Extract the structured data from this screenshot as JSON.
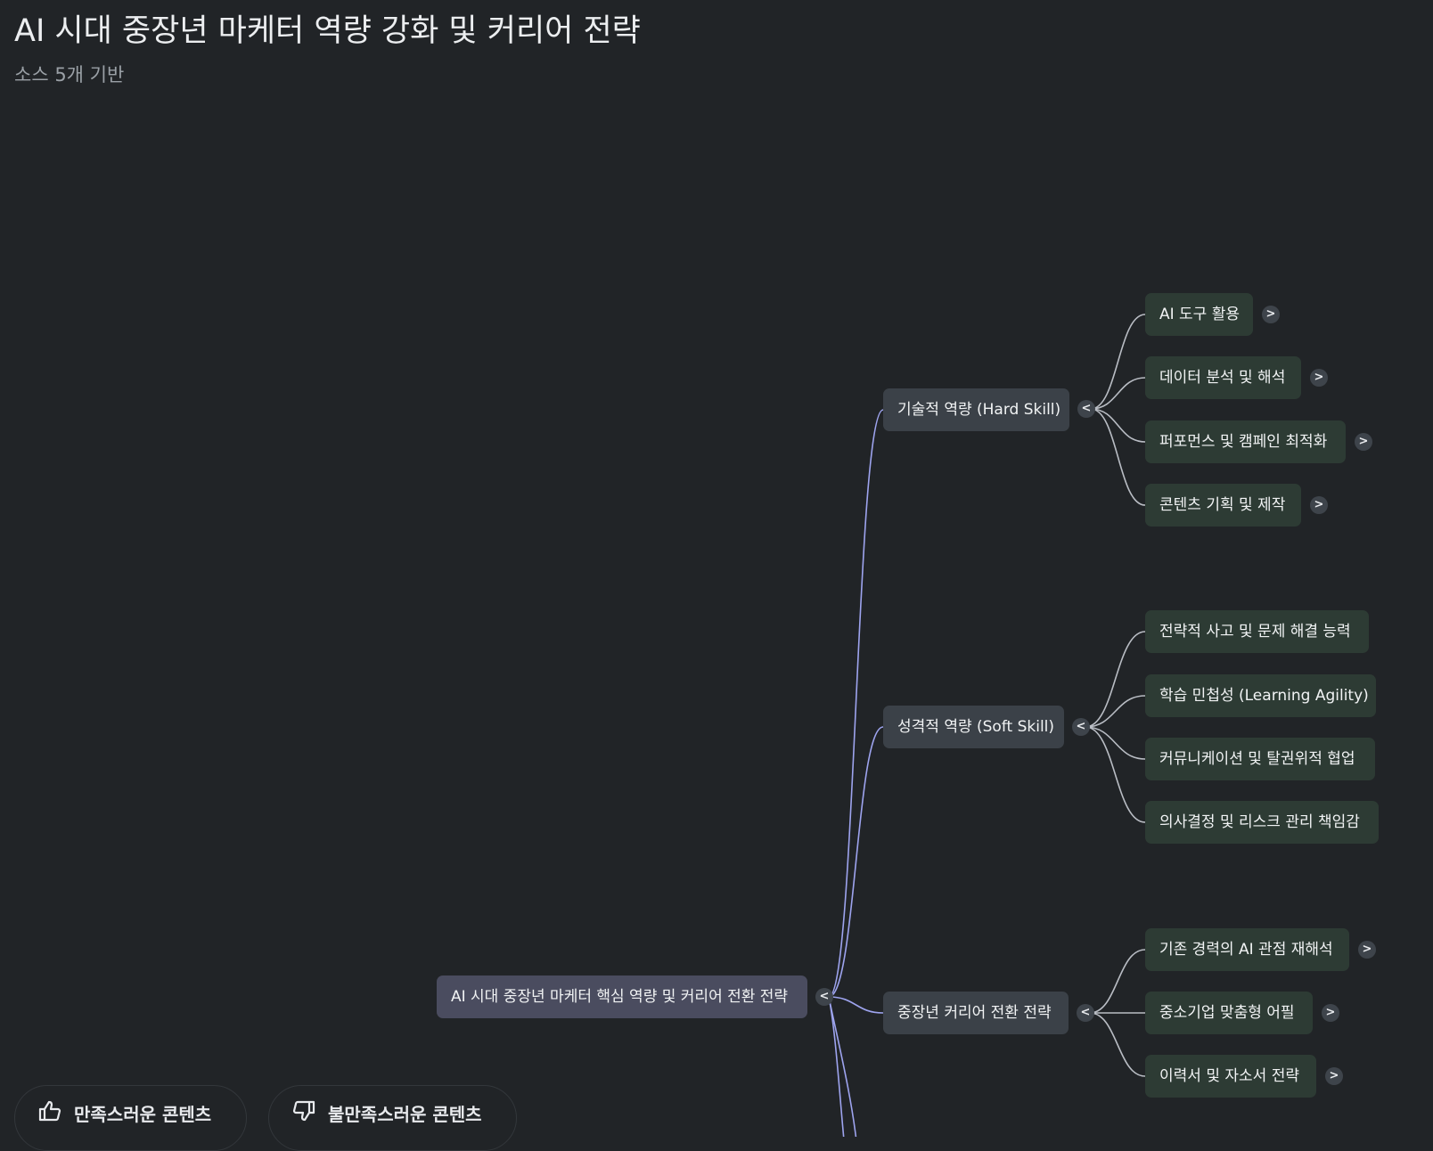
{
  "header": {
    "title": "AI 시대 중장년 마케터 역량 강화 및 커리어 전략",
    "subtitle": "소스 5개 기반"
  },
  "colors": {
    "background": "#212427",
    "root_link": "#9ea4ef",
    "child_link": "#b9bdc4",
    "root_node": "#4a4c5f",
    "branch_node": "#3b4148",
    "leaf_node": "#2d3b34"
  },
  "mindmap": {
    "root": {
      "label": "AI 시대 중장년 마케터 핵심 역량 및 커리어 전환 전략",
      "toggle": "<"
    },
    "branches": [
      {
        "label": "기술적 역량 (Hard Skill)",
        "toggle": "<",
        "children": [
          {
            "label": "AI 도구 활용",
            "toggle": ">"
          },
          {
            "label": "데이터 분석 및 해석",
            "toggle": ">"
          },
          {
            "label": "퍼포먼스 및 캠페인 최적화",
            "toggle": ">"
          },
          {
            "label": "콘텐츠 기획 및 제작",
            "toggle": ">"
          }
        ]
      },
      {
        "label": "성격적 역량 (Soft Skill)",
        "toggle": "<",
        "children": [
          {
            "label": "전략적 사고 및 문제 해결 능력"
          },
          {
            "label": "학습 민첩성 (Learning Agility)"
          },
          {
            "label": "커뮤니케이션 및 탈권위적 협업"
          },
          {
            "label": "의사결정 및 리스크 관리 책임감"
          }
        ]
      },
      {
        "label": "중장년 커리어 전환 전략",
        "toggle": "<",
        "children": [
          {
            "label": "기존 경력의 AI 관점 재해석",
            "toggle": ">"
          },
          {
            "label": "중소기업 맞춤형 어필",
            "toggle": ">"
          },
          {
            "label": "이력서 및 자소서 전략",
            "toggle": ">"
          }
        ]
      }
    ]
  },
  "feedback": {
    "like_label": "만족스러운 콘텐츠",
    "like_icon": "thumbs-up-icon",
    "dislike_label": "불만족스러운 콘텐츠",
    "dislike_icon": "thumbs-down-icon"
  }
}
